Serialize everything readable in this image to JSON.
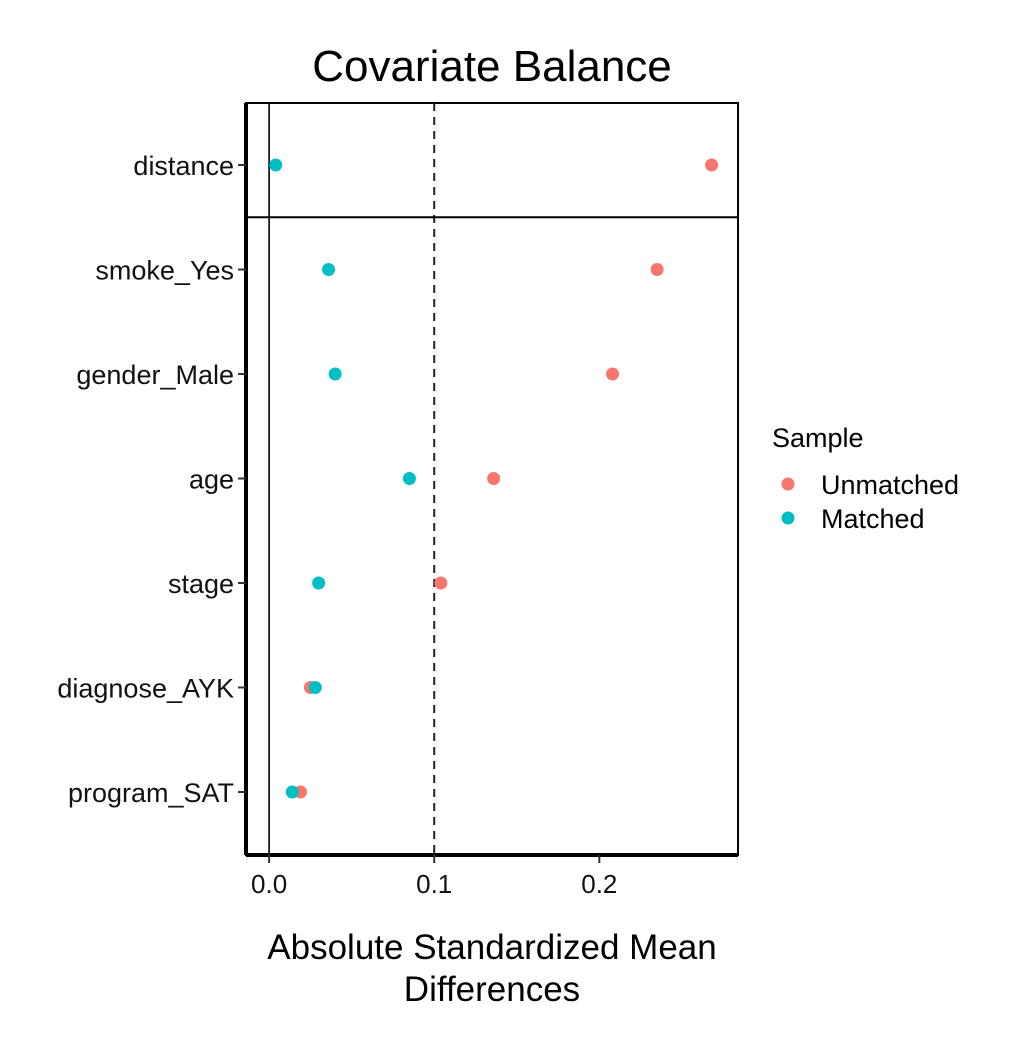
{
  "chart_data": {
    "type": "scatter",
    "title": "Covariate Balance",
    "xlabel": [
      "Absolute Standardized Mean",
      "Differences"
    ],
    "ylabel": "",
    "categories": [
      "distance",
      "smoke_Yes",
      "gender_Male",
      "age",
      "stage",
      "diagnose_AYK",
      "program_SAT"
    ],
    "xlim": [
      -0.014,
      0.284
    ],
    "xticks": [
      "0.0",
      "0.1",
      "0.2"
    ],
    "xtick_values": [
      0.0,
      0.1,
      0.2
    ],
    "threshold": 0.1,
    "zero_line": 0.0,
    "separator_after": "distance",
    "grid": false,
    "legend": {
      "title": "Sample",
      "position": "right"
    },
    "series": [
      {
        "name": "Unmatched",
        "color": "#F8766D",
        "values": [
          0.268,
          0.235,
          0.208,
          0.136,
          0.104,
          0.025,
          0.019
        ]
      },
      {
        "name": "Matched",
        "color": "#00BFC4",
        "values": [
          0.004,
          0.036,
          0.04,
          0.085,
          0.03,
          0.028,
          0.014
        ]
      }
    ]
  }
}
